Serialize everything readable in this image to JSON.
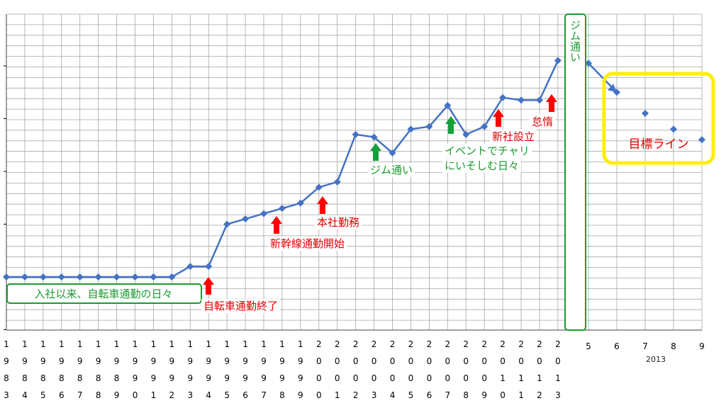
{
  "chart_data": {
    "type": "line",
    "title": "",
    "xlabel": "",
    "ylabel": "",
    "grid": true,
    "x_tick_lines": [
      [
        "1",
        "9",
        "8",
        "3"
      ],
      [
        "1",
        "9",
        "8",
        "4"
      ],
      [
        "1",
        "9",
        "8",
        "5"
      ],
      [
        "1",
        "9",
        "8",
        "6"
      ],
      [
        "1",
        "9",
        "8",
        "7"
      ],
      [
        "1",
        "9",
        "8",
        "8"
      ],
      [
        "1",
        "9",
        "8",
        "9"
      ],
      [
        "1",
        "9",
        "9",
        "0"
      ],
      [
        "1",
        "9",
        "9",
        "1"
      ],
      [
        "1",
        "9",
        "9",
        "2"
      ],
      [
        "1",
        "9",
        "9",
        "3"
      ],
      [
        "1",
        "9",
        "9",
        "4"
      ],
      [
        "1",
        "9",
        "9",
        "5"
      ],
      [
        "1",
        "9",
        "9",
        "6"
      ],
      [
        "1",
        "9",
        "9",
        "7"
      ],
      [
        "1",
        "9",
        "9",
        "8"
      ],
      [
        "1",
        "9",
        "9",
        "9"
      ],
      [
        "2",
        "0",
        "0",
        "0"
      ],
      [
        "2",
        "0",
        "0",
        "1"
      ],
      [
        "2",
        "0",
        "0",
        "2"
      ],
      [
        "2",
        "0",
        "0",
        "3"
      ],
      [
        "2",
        "0",
        "0",
        "4"
      ],
      [
        "2",
        "0",
        "0",
        "5"
      ],
      [
        "2",
        "0",
        "0",
        "6"
      ],
      [
        "2",
        "0",
        "0",
        "7"
      ],
      [
        "2",
        "0",
        "0",
        "8"
      ],
      [
        "2",
        "0",
        "0",
        "9"
      ],
      [
        "2",
        "0",
        "1",
        "0"
      ],
      [
        "2",
        "0",
        "1",
        "1"
      ],
      [
        "2",
        "0",
        "1",
        "2"
      ],
      [
        "2",
        "0",
        "1",
        "3"
      ]
    ],
    "months": [
      "5",
      "6",
      "7",
      "8",
      "9"
    ],
    "months_year": "2013",
    "series": [
      {
        "values": [
          0,
          0,
          0,
          0,
          0,
          0,
          0,
          0,
          0,
          0,
          0.2,
          0.2,
          1.0,
          1.1,
          1.2,
          1.3,
          1.4,
          1.7,
          1.8,
          2.7,
          2.65,
          2.35,
          2.8,
          2.85,
          3.25,
          2.7,
          2.85,
          3.4,
          3.35,
          3.35,
          4.1
        ]
      },
      {
        "values": [
          4.05,
          3.5
        ]
      },
      {
        "values": [
          3.1,
          2.8,
          2.6
        ]
      }
    ],
    "ylim": [
      -1,
      6
    ],
    "annotations": {
      "commute_days": "入社以来、自転車通勤の日々",
      "bike_end": "自転車通勤終了",
      "shinkansen": "新幹線通勤開始",
      "head_office": "本社勤務",
      "gym1": "ジム通い",
      "event_line1": "イベントでチャリ",
      "event_line2": "にいそしむ日々",
      "new_company": "新社設立",
      "lazy": "怠惰",
      "gym2": "ジム通い",
      "target": "目標ライン"
    },
    "colors": {
      "line": "#4472c4",
      "marker": "#4472c4",
      "grid": "#a6a6a6",
      "arrow_red": "#ff0000",
      "arrow_green": "#15a03b",
      "box_green": "#1a9a30",
      "box_yellow": "#ffee00"
    }
  }
}
